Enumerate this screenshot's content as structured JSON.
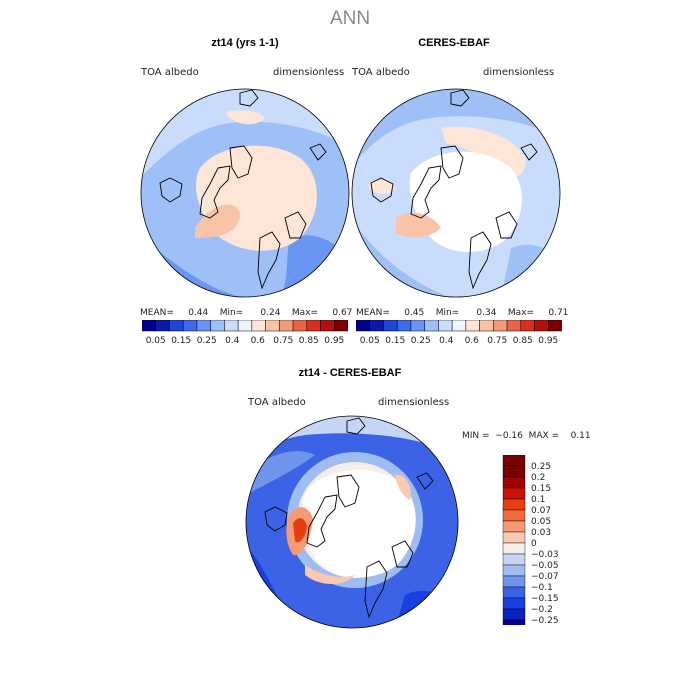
{
  "page_title": "ANN",
  "panels": [
    {
      "subtitle": "zt14 (yrs 1-1)",
      "var_label": "TOA albedo",
      "units_label": "dimensionless",
      "stats": {
        "mean_label": "MEAN=",
        "mean": "0.44",
        "min_label": "Min=",
        "min": "0.24",
        "max_label": "Max=",
        "max": "0.67"
      },
      "colorbar_ticks": [
        "0.05",
        "0.15",
        "0.25",
        "0.4",
        "0.6",
        "0.75",
        "0.85",
        "0.95"
      ]
    },
    {
      "subtitle": "CERES-EBAF",
      "var_label": "TOA albedo",
      "units_label": "dimensionless",
      "stats": {
        "mean_label": "MEAN=",
        "mean": "0.45",
        "min_label": "Min=",
        "min": "0.34",
        "max_label": "Max=",
        "max": "0.71"
      },
      "colorbar_ticks": [
        "0.05",
        "0.15",
        "0.25",
        "0.4",
        "0.6",
        "0.75",
        "0.85",
        "0.95"
      ]
    }
  ],
  "diff_panel": {
    "subtitle": "zt14 - CERES-EBAF",
    "var_label": "TOA albedo",
    "units_label": "dimensionless",
    "min_label": "MIN =",
    "min": "−0.16",
    "max_label": "MAX =",
    "max": "0.11",
    "colorbar_ticks": [
      "0.25",
      "0.2",
      "0.15",
      "0.1",
      "0.07",
      "0.05",
      "0.03",
      "0",
      "−0.03",
      "−0.05",
      "−0.07",
      "−0.1",
      "−0.15",
      "−0.2",
      "−0.25"
    ]
  },
  "colors": {
    "abs_scale": [
      "#00008b",
      "#0a1aa8",
      "#1f45d4",
      "#3f6ae8",
      "#6a95f2",
      "#9fbff7",
      "#c9dcfb",
      "#eef3fd",
      "#fde6d8",
      "#f9c3a8",
      "#f39a7d",
      "#ea6448",
      "#d7301f",
      "#b3110f",
      "#800000"
    ],
    "diff_scale": [
      "#7a0000",
      "#a40000",
      "#cc1100",
      "#e83d10",
      "#f26a3a",
      "#f69a75",
      "#fcc9b0",
      "#f6eee9",
      "#c5d6f5",
      "#9ebdf2",
      "#6f95ec",
      "#3c62e6",
      "#1a3fe0",
      "#0a22c0",
      "#00008b"
    ]
  },
  "chart_data": [
    {
      "type": "heatmap",
      "title": "zt14 (yrs 1-1)",
      "projection": "north polar stereographic",
      "variable": "TOA albedo",
      "units": "dimensionless",
      "mean": 0.44,
      "min": 0.24,
      "max": 0.67,
      "levels": [
        0.05,
        0.1,
        0.15,
        0.2,
        0.25,
        0.3,
        0.4,
        0.5,
        0.6,
        0.7,
        0.75,
        0.8,
        0.85,
        0.9,
        0.95
      ],
      "legend": "colorbar bottom"
    },
    {
      "type": "heatmap",
      "title": "CERES-EBAF",
      "projection": "north polar stereographic",
      "variable": "TOA albedo",
      "units": "dimensionless",
      "mean": 0.45,
      "min": 0.34,
      "max": 0.71,
      "levels": [
        0.05,
        0.1,
        0.15,
        0.2,
        0.25,
        0.3,
        0.4,
        0.5,
        0.6,
        0.7,
        0.75,
        0.8,
        0.85,
        0.9,
        0.95
      ],
      "legend": "colorbar bottom"
    },
    {
      "type": "heatmap",
      "title": "zt14 - CERES-EBAF",
      "projection": "north polar stereographic",
      "variable": "TOA albedo",
      "units": "dimensionless",
      "min": -0.16,
      "max": 0.11,
      "levels": [
        -0.25,
        -0.2,
        -0.15,
        -0.1,
        -0.07,
        -0.05,
        -0.03,
        0,
        0.03,
        0.05,
        0.07,
        0.1,
        0.15,
        0.2,
        0.25
      ],
      "legend": "colorbar right"
    }
  ]
}
